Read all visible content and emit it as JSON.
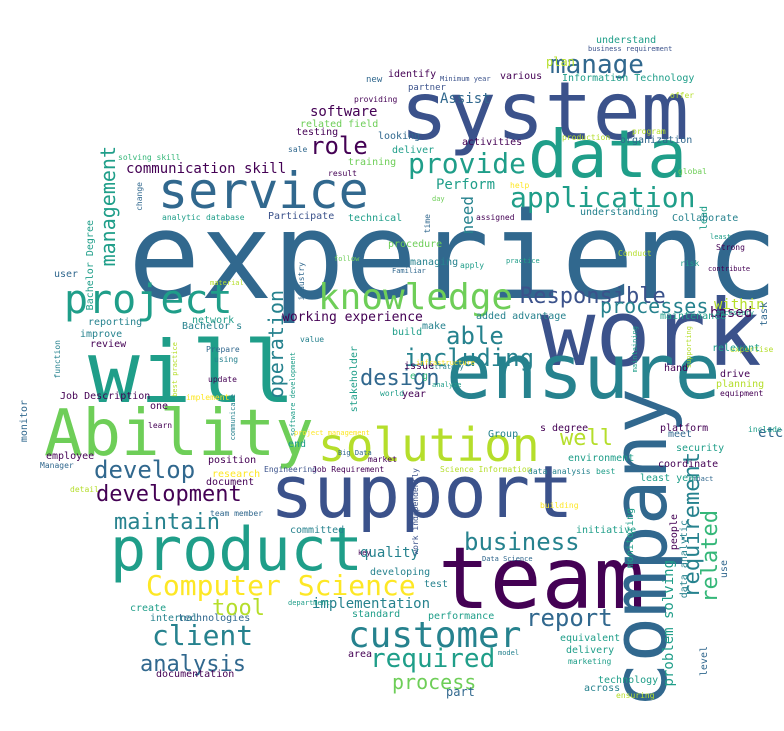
{
  "palette": {
    "deep-purple": "#440154",
    "indigo": "#3b528b",
    "steel-blue": "#31688e",
    "teal-blue": "#26828e",
    "teal": "#1f9e89",
    "green": "#35b779",
    "lime": "#6ece58",
    "yellow-green": "#b5de2b",
    "yellow": "#fde725"
  },
  "words": [
    {
      "text": "experience"
    },
    {
      "text": "system"
    },
    {
      "text": "work"
    },
    {
      "text": "team"
    },
    {
      "text": "support"
    },
    {
      "text": "product"
    },
    {
      "text": "ensure"
    },
    {
      "text": "will"
    },
    {
      "text": "Ability"
    },
    {
      "text": "company"
    },
    {
      "text": "data"
    },
    {
      "text": "service"
    },
    {
      "text": "solution"
    },
    {
      "text": "customer"
    },
    {
      "text": "project"
    },
    {
      "text": "knowledge"
    },
    {
      "text": "application"
    },
    {
      "text": "Computer Science"
    },
    {
      "text": "development"
    },
    {
      "text": "business"
    },
    {
      "text": "client"
    },
    {
      "text": "report"
    },
    {
      "text": "provide"
    },
    {
      "text": "required"
    },
    {
      "text": "requirement"
    },
    {
      "text": "management"
    },
    {
      "text": "manage"
    },
    {
      "text": "Responsible"
    },
    {
      "text": "develop"
    },
    {
      "text": "maintain"
    },
    {
      "text": "analysis"
    },
    {
      "text": "design"
    },
    {
      "text": "tool"
    },
    {
      "text": "process"
    },
    {
      "text": "role"
    },
    {
      "text": "able"
    },
    {
      "text": "including"
    },
    {
      "text": "operation"
    },
    {
      "text": "processes"
    },
    {
      "text": "related"
    },
    {
      "text": "well"
    },
    {
      "text": "communication skill"
    },
    {
      "text": "implementation"
    },
    {
      "text": "quality"
    },
    {
      "text": "working experience"
    },
    {
      "text": "need"
    },
    {
      "text": "Perform"
    },
    {
      "text": "software"
    },
    {
      "text": "Assist"
    },
    {
      "text": "plan"
    },
    {
      "text": "based"
    },
    {
      "text": "within"
    },
    {
      "text": "etc"
    },
    {
      "text": "problem solving"
    },
    {
      "text": "documentation"
    },
    {
      "text": "part"
    },
    {
      "text": "understand"
    },
    {
      "text": "business requirement"
    },
    {
      "text": "Minimum year"
    },
    {
      "text": "Information Technology"
    },
    {
      "text": "offer"
    },
    {
      "text": "identify"
    },
    {
      "text": "various"
    },
    {
      "text": "new"
    },
    {
      "text": "partner"
    },
    {
      "text": "providing"
    },
    {
      "text": "related field"
    },
    {
      "text": "testing"
    },
    {
      "text": "looking"
    },
    {
      "text": "deliver"
    },
    {
      "text": "sale"
    },
    {
      "text": "activities"
    },
    {
      "text": "organization"
    },
    {
      "text": "production"
    },
    {
      "text": "program"
    },
    {
      "text": "solving skill"
    },
    {
      "text": "training"
    },
    {
      "text": "result"
    },
    {
      "text": "global"
    },
    {
      "text": "lead"
    },
    {
      "text": "day"
    },
    {
      "text": "time"
    },
    {
      "text": "help"
    },
    {
      "text": "assigned"
    },
    {
      "text": "change"
    },
    {
      "text": "analytic"
    },
    {
      "text": "database"
    },
    {
      "text": "Participate"
    },
    {
      "text": "technical"
    },
    {
      "text": "understanding"
    },
    {
      "text": "Collaborate"
    },
    {
      "text": "procedure"
    },
    {
      "text": "least"
    },
    {
      "text": "Strong"
    },
    {
      "text": "Bachelor Degree"
    },
    {
      "text": "managing"
    },
    {
      "text": "follow"
    },
    {
      "text": "apply"
    },
    {
      "text": "practice"
    },
    {
      "text": "Conduct"
    },
    {
      "text": "risk"
    },
    {
      "text": "contribute"
    },
    {
      "text": "user"
    },
    {
      "text": "industry"
    },
    {
      "text": "Familiar"
    },
    {
      "text": "material"
    },
    {
      "text": "network"
    },
    {
      "text": "Bachelor s"
    },
    {
      "text": "added advantage"
    },
    {
      "text": "maintenance"
    },
    {
      "text": "necessary"
    },
    {
      "text": "task"
    },
    {
      "text": "reporting"
    },
    {
      "text": "improve"
    },
    {
      "text": "review"
    },
    {
      "text": "value"
    },
    {
      "text": "make"
    },
    {
      "text": "build"
    },
    {
      "text": "strategy"
    },
    {
      "text": "issue"
    },
    {
      "text": "e g"
    },
    {
      "text": "maintaining"
    },
    {
      "text": "supporting"
    },
    {
      "text": "expertise"
    },
    {
      "text": "function"
    },
    {
      "text": "best practice"
    },
    {
      "text": "Prepare"
    },
    {
      "text": "using"
    },
    {
      "text": "software development"
    },
    {
      "text": "stakeholder"
    },
    {
      "text": "infrastructure"
    },
    {
      "text": "hand"
    },
    {
      "text": "drive"
    },
    {
      "text": "planning"
    },
    {
      "text": "relevant"
    },
    {
      "text": "update"
    },
    {
      "text": "world"
    },
    {
      "text": "year"
    },
    {
      "text": "analyze"
    },
    {
      "text": "equipment"
    },
    {
      "text": "Job Description"
    },
    {
      "text": "implement"
    },
    {
      "text": "monitor"
    },
    {
      "text": "one"
    },
    {
      "text": "learn"
    },
    {
      "text": "communicate"
    },
    {
      "text": "end"
    },
    {
      "text": "project management"
    },
    {
      "text": "Big Data"
    },
    {
      "text": "market"
    },
    {
      "text": "Group"
    },
    {
      "text": "s degree"
    },
    {
      "text": "platform"
    },
    {
      "text": "include"
    },
    {
      "text": "meet"
    },
    {
      "text": "security"
    },
    {
      "text": "employee"
    },
    {
      "text": "Manager"
    },
    {
      "text": "position"
    },
    {
      "text": "research"
    },
    {
      "text": "Engineering"
    },
    {
      "text": "Job Requirement"
    },
    {
      "text": "Science Information"
    },
    {
      "text": "data analysis"
    },
    {
      "text": "best"
    },
    {
      "text": "environment"
    },
    {
      "text": "coordinate"
    },
    {
      "text": "impact"
    },
    {
      "text": "detail"
    },
    {
      "text": "document"
    },
    {
      "text": "team member"
    },
    {
      "text": "least year"
    },
    {
      "text": "work independently"
    },
    {
      "text": "building"
    },
    {
      "text": "initiative"
    },
    {
      "text": "monitoring"
    },
    {
      "text": "people"
    },
    {
      "text": "committed"
    },
    {
      "text": "key"
    },
    {
      "text": "developing"
    },
    {
      "text": "Data Science"
    },
    {
      "text": "test"
    },
    {
      "text": "data analytic"
    },
    {
      "text": "use"
    },
    {
      "text": "create"
    },
    {
      "text": "department"
    },
    {
      "text": "internal"
    },
    {
      "text": "technologies"
    },
    {
      "text": "standard"
    },
    {
      "text": "performance"
    },
    {
      "text": "equivalent"
    },
    {
      "text": "area"
    },
    {
      "text": "model"
    },
    {
      "text": "delivery"
    },
    {
      "text": "marketing"
    },
    {
      "text": "level"
    },
    {
      "text": "technology"
    },
    {
      "text": "across"
    },
    {
      "text": "ensuring"
    }
  ]
}
